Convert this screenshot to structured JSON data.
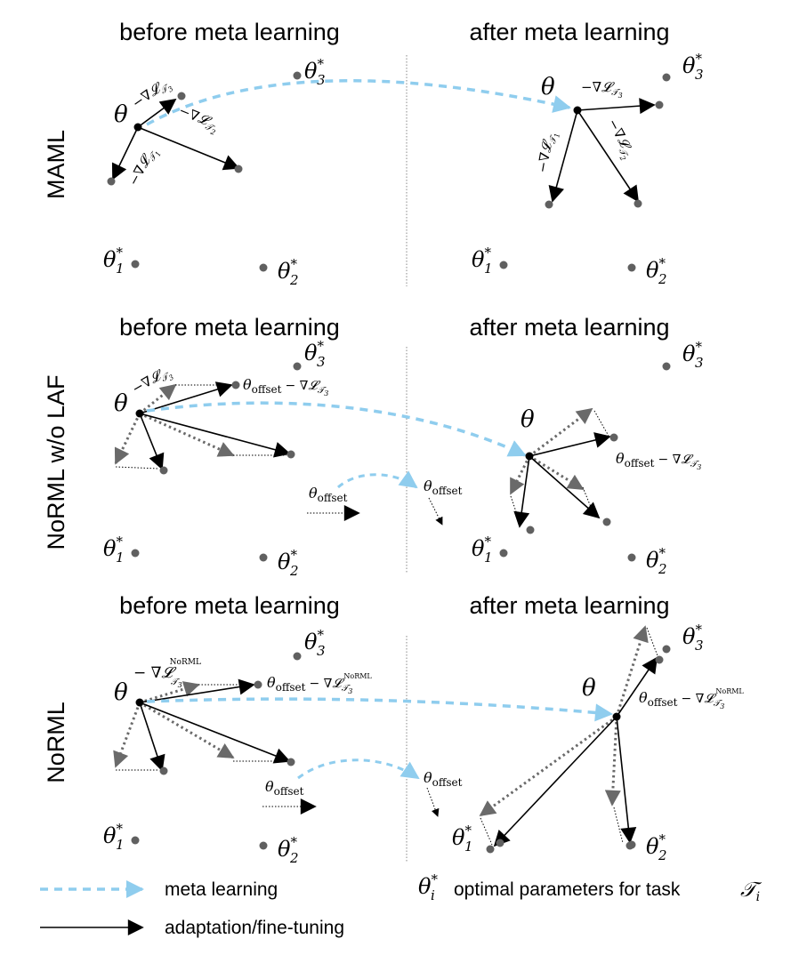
{
  "header": {
    "before": "before meta learning",
    "after": "after meta learning"
  },
  "rows": {
    "maml": "MAML",
    "norml_wo_laf": "NoRML w/o LAF",
    "norml": "NoRML"
  },
  "symbols": {
    "theta": "θ",
    "theta_star_base": "θ",
    "star": "*",
    "sub_1": "1",
    "sub_2": "2",
    "sub_3": "3",
    "neg_grad": "−∇𝓛",
    "task_sub": "𝒯",
    "offset_sub": "offset",
    "norml_sup": "NoRML",
    "minus_grad": "− ∇𝓛"
  },
  "legend": {
    "meta_learning": "meta learning",
    "adaptation": "adaptation/fine-tuning",
    "theta_i_star": "θ",
    "sub_i": "i",
    "optimal_text": "optimal parameters for task",
    "task_symbol": "𝒯",
    "task_sub_i": "i"
  },
  "colors": {
    "meta": "#8fcdee",
    "black": "#000000",
    "gray": "#6a6a6a",
    "dot": "#606060"
  }
}
